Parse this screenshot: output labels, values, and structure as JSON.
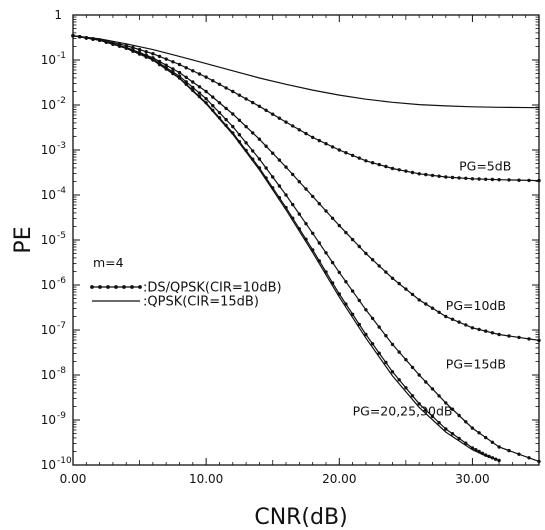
{
  "chart_data": {
    "type": "line",
    "xlabel": "CNR(dB)",
    "ylabel": "PE",
    "xlim": [
      0,
      35
    ],
    "ylim_log10": [
      -10,
      0
    ],
    "yscale": "log",
    "grid": false,
    "x_ticks": [
      0,
      10,
      20,
      30
    ],
    "x_tick_labels": [
      "0.00",
      "10.00",
      "20.00",
      "30.00"
    ],
    "y_tick_labels": [
      {
        "value": 0,
        "base": "1",
        "exp": ""
      },
      {
        "value": -1,
        "base": "10",
        "exp": "-1"
      },
      {
        "value": -2,
        "base": "10",
        "exp": "-2"
      },
      {
        "value": -3,
        "base": "10",
        "exp": "-3"
      },
      {
        "value": -4,
        "base": "10",
        "exp": "-4"
      },
      {
        "value": -5,
        "base": "10",
        "exp": "-5"
      },
      {
        "value": -6,
        "base": "10",
        "exp": "-6"
      },
      {
        "value": -7,
        "base": "10",
        "exp": "-7"
      },
      {
        "value": -8,
        "base": "10",
        "exp": "-8"
      },
      {
        "value": -9,
        "base": "10",
        "exp": "-9"
      },
      {
        "value": -10,
        "base": "10",
        "exp": "-10"
      }
    ],
    "legend": [
      {
        "label": ":DS/QPSK(CIR=10dB)",
        "style": "line-dots"
      },
      {
        "label": ":QPSK(CIR=15dB)",
        "style": "line"
      }
    ],
    "annotations": [
      {
        "text": "m=4",
        "x": 1.5,
        "y_log": -5.6
      },
      {
        "text": "PG=5dB",
        "x": 29.0,
        "y_log": -3.45
      },
      {
        "text": "PG=10dB",
        "x": 28.0,
        "y_log": -6.55
      },
      {
        "text": "PG=15dB",
        "x": 28.0,
        "y_log": -7.85
      },
      {
        "text": "PG=20,25,30dB",
        "x": 21.0,
        "y_log": -8.9
      }
    ],
    "series": [
      {
        "name": "QPSK(CIR=15dB)",
        "style": "line",
        "x": [
          0,
          2,
          4,
          6,
          8,
          10,
          12,
          14,
          16,
          18,
          20,
          22,
          24,
          26,
          28,
          30,
          32,
          35
        ],
        "y_log": [
          -0.46,
          -0.53,
          -0.64,
          -0.77,
          -0.92,
          -1.08,
          -1.24,
          -1.4,
          -1.54,
          -1.67,
          -1.78,
          -1.87,
          -1.94,
          -1.99,
          -2.02,
          -2.04,
          -2.05,
          -2.06
        ]
      },
      {
        "name": "PG=5dB",
        "style": "line-dots",
        "x": [
          0,
          2,
          4,
          6,
          8,
          10,
          12,
          14,
          16,
          18,
          20,
          22,
          24,
          26,
          28,
          30,
          32,
          35
        ],
        "y_log": [
          -0.46,
          -0.55,
          -0.68,
          -0.86,
          -1.1,
          -1.38,
          -1.7,
          -2.03,
          -2.38,
          -2.72,
          -3.0,
          -3.24,
          -3.41,
          -3.53,
          -3.6,
          -3.64,
          -3.66,
          -3.68
        ]
      },
      {
        "name": "PG=10dB",
        "style": "line-dots",
        "x": [
          0,
          2,
          4,
          6,
          8,
          10,
          12,
          14,
          16,
          18,
          20,
          22,
          24,
          26,
          28,
          30,
          32,
          35
        ],
        "y_log": [
          -0.46,
          -0.56,
          -0.72,
          -0.95,
          -1.28,
          -1.7,
          -2.2,
          -2.76,
          -3.38,
          -4.03,
          -4.68,
          -5.3,
          -5.85,
          -6.33,
          -6.7,
          -6.95,
          -7.1,
          -7.23
        ]
      },
      {
        "name": "PG=15dB",
        "style": "line-dots",
        "x": [
          0,
          2,
          4,
          6,
          8,
          10,
          12,
          14,
          16,
          18,
          20,
          22,
          24,
          26,
          28,
          30,
          32,
          35
        ],
        "y_log": [
          -0.46,
          -0.56,
          -0.73,
          -0.98,
          -1.36,
          -1.86,
          -2.48,
          -3.2,
          -4.0,
          -4.85,
          -5.72,
          -6.55,
          -7.32,
          -8.0,
          -8.62,
          -9.18,
          -9.6,
          -9.92
        ]
      },
      {
        "name": "PG=20,25,30dB",
        "style": "line-dots",
        "x": [
          0,
          2,
          4,
          6,
          8,
          10,
          12,
          14,
          16,
          18,
          20,
          22,
          24,
          26,
          28,
          30,
          31,
          32
        ],
        "y_log": [
          -0.46,
          -0.56,
          -0.74,
          -1.0,
          -1.4,
          -1.95,
          -2.62,
          -3.4,
          -4.28,
          -5.22,
          -6.2,
          -7.1,
          -7.93,
          -8.64,
          -9.2,
          -9.62,
          -9.78,
          -9.9
        ]
      },
      {
        "name": "PG=20,25,30dB (b)",
        "style": "line",
        "x": [
          0,
          2,
          4,
          6,
          8,
          10,
          12,
          14,
          16,
          18,
          20,
          22,
          24,
          26,
          28,
          30,
          31,
          32
        ],
        "y_log": [
          -0.46,
          -0.56,
          -0.74,
          -1.0,
          -1.41,
          -1.97,
          -2.65,
          -3.44,
          -4.33,
          -5.28,
          -6.27,
          -7.18,
          -8.02,
          -8.72,
          -9.27,
          -9.66,
          -9.8,
          -9.9
        ]
      }
    ]
  }
}
